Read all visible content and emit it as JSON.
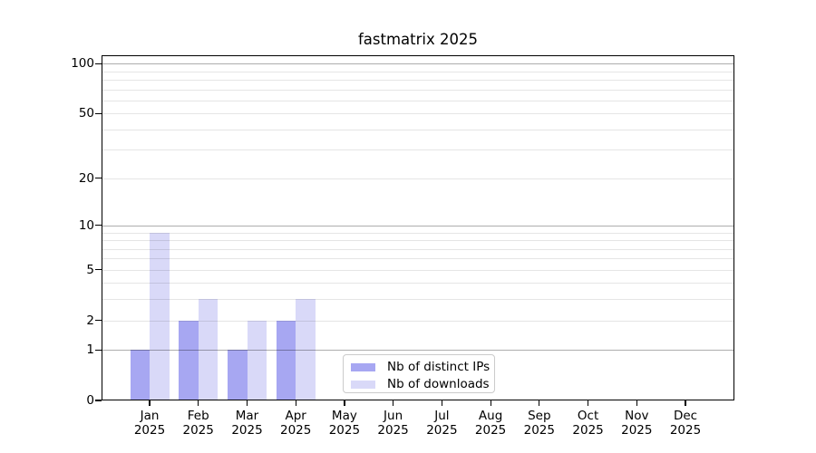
{
  "chart_data": {
    "type": "bar",
    "title": "fastmatrix 2025",
    "categories": [
      "Jan 2025",
      "Feb 2025",
      "Mar 2025",
      "Apr 2025",
      "May 2025",
      "Jun 2025",
      "Jul 2025",
      "Aug 2025",
      "Sep 2025",
      "Oct 2025",
      "Nov 2025",
      "Dec 2025"
    ],
    "series": [
      {
        "name": "Nb of distinct IPs",
        "values": [
          1,
          2,
          1,
          2,
          0,
          0,
          0,
          0,
          0,
          0,
          0,
          0
        ],
        "color": "#a7a7f2"
      },
      {
        "name": "Nb of downloads",
        "values": [
          9,
          3,
          2,
          3,
          0,
          0,
          0,
          0,
          0,
          0,
          0,
          0
        ],
        "color": "#d9d9f8"
      }
    ],
    "xlabel": "",
    "ylabel": "",
    "yscale": "log1p",
    "ylim": [
      0,
      100
    ],
    "yticks": [
      0,
      1,
      2,
      5,
      10,
      20,
      50,
      100
    ],
    "grid": "horizontal",
    "legend_position": "lower-center-inside"
  },
  "x_axis": {
    "month_labels": [
      "Jan",
      "Feb",
      "Mar",
      "Apr",
      "May",
      "Jun",
      "Jul",
      "Aug",
      "Sep",
      "Oct",
      "Nov",
      "Dec"
    ],
    "year": "2025"
  },
  "y_axis": {
    "tick_labels": [
      "100",
      "50",
      "20",
      "10",
      "5",
      "2",
      "1",
      "0"
    ],
    "tick_values": [
      100,
      50,
      20,
      10,
      5,
      2,
      1,
      0
    ],
    "major_grid_values": [
      1,
      10,
      100
    ],
    "minor_grid_values": [
      2,
      3,
      4,
      5,
      6,
      7,
      8,
      9,
      20,
      30,
      40,
      50,
      60,
      70,
      80,
      90
    ]
  },
  "colors": {
    "bar_distinct_ips": "#a7a7f2",
    "bar_downloads": "#d9d9f8",
    "axis": "#000000",
    "legend_border": "#cbcbcb"
  }
}
